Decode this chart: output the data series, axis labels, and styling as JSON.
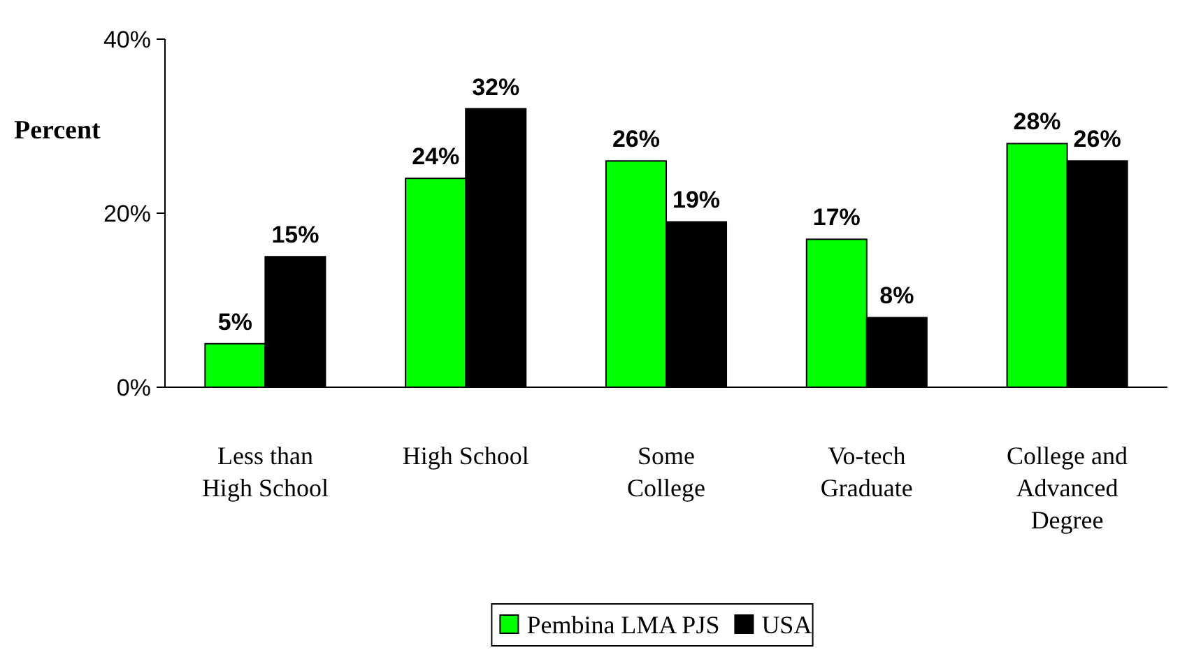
{
  "chart_data": {
    "type": "bar",
    "ylabel": "Percent",
    "categories": [
      "Less than High School",
      "High School",
      "Some College",
      "Vo-tech Graduate",
      "College and Advanced Degree"
    ],
    "series": [
      {
        "name": "Pembina LMA PJS",
        "color": "#00ff00",
        "values": [
          5,
          24,
          26,
          17,
          28
        ],
        "value_labels": [
          "5%",
          "24%",
          "26%",
          "17%",
          "28%"
        ]
      },
      {
        "name": "USA",
        "color": "#000000",
        "values": [
          15,
          32,
          19,
          8,
          26
        ],
        "value_labels": [
          "15%",
          "32%",
          "19%",
          "8%",
          "26%"
        ]
      }
    ],
    "ylim": [
      0,
      40
    ],
    "yticks": [
      {
        "value": 0,
        "label": "0%"
      },
      {
        "value": 20,
        "label": "20%"
      },
      {
        "value": 40,
        "label": "40%"
      }
    ],
    "grid": false,
    "legend": "bottom"
  }
}
